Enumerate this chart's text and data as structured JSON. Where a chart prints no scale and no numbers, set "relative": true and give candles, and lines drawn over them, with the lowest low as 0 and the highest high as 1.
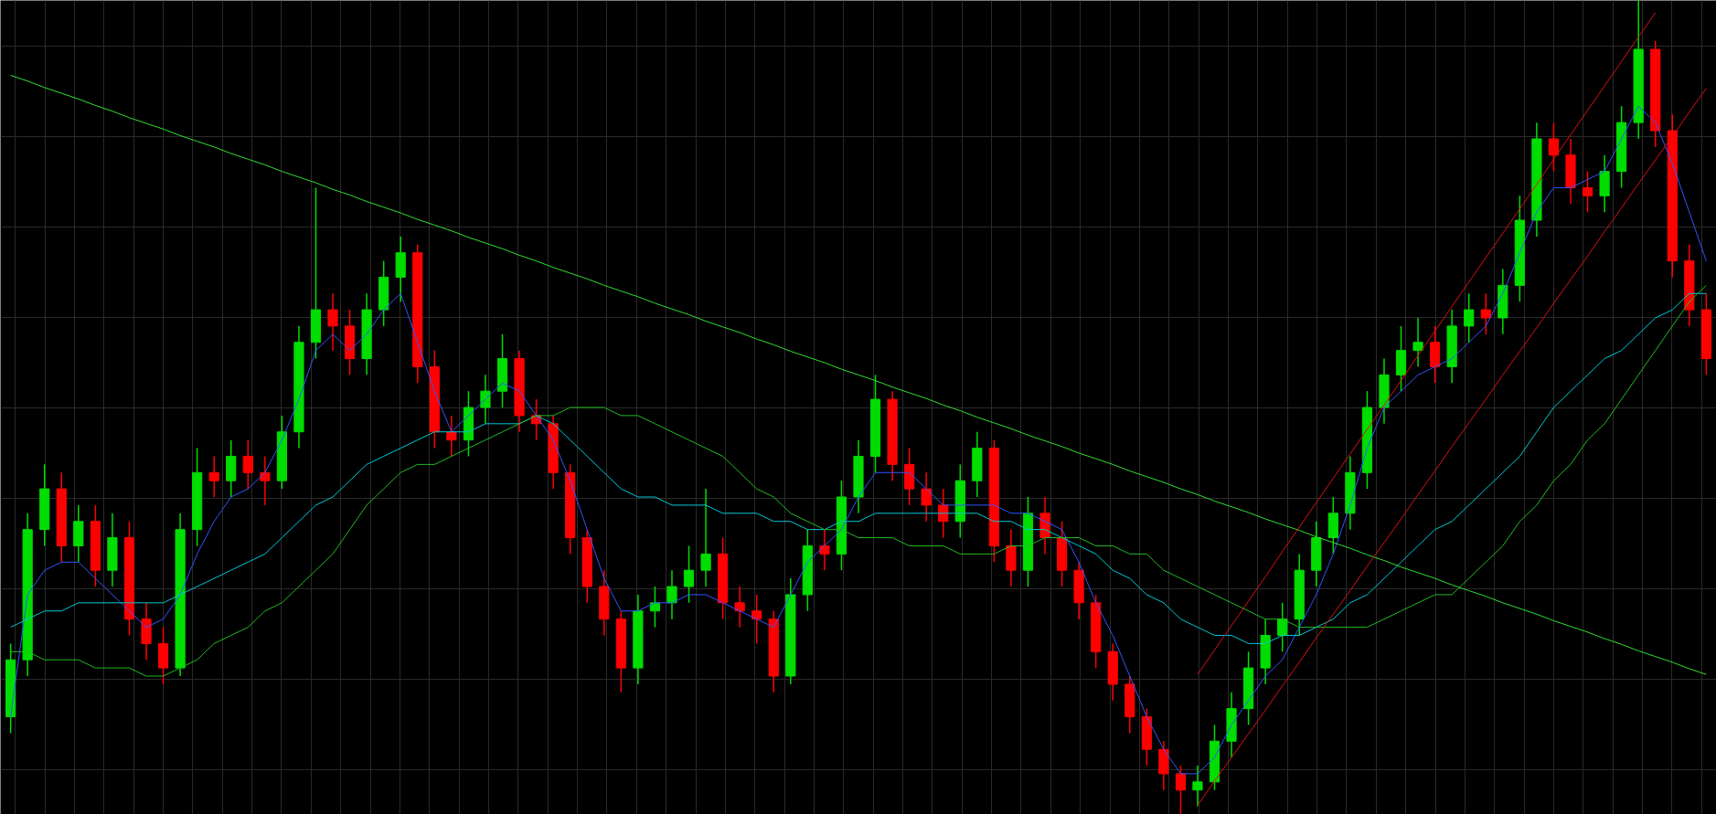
{
  "chart_data": {
    "type": "candlestick",
    "relative": true,
    "tick_labels": false,
    "grid": true,
    "categories": [
      null,
      null,
      null,
      null,
      null,
      null,
      null,
      null,
      null,
      null,
      null,
      null,
      null,
      null,
      null,
      null,
      null,
      null,
      null,
      null,
      null,
      null,
      null,
      null,
      null,
      null,
      null,
      null,
      null,
      null,
      null,
      null,
      null,
      null,
      null,
      null,
      null,
      null,
      null,
      null,
      null,
      null,
      null,
      null,
      null,
      null,
      null,
      null,
      null,
      null,
      null,
      null,
      null,
      null,
      null,
      null,
      null,
      null,
      null,
      null,
      null,
      null,
      null,
      null,
      null,
      null,
      null,
      null,
      null,
      null,
      null,
      null,
      null,
      null,
      null,
      null,
      null,
      null,
      null,
      null,
      null,
      null,
      null,
      null,
      null,
      null,
      null,
      null,
      null,
      null,
      null,
      null,
      null,
      null,
      null,
      null,
      null,
      null,
      null,
      null,
      null
    ],
    "ohlc": [
      [
        0.12,
        0.21,
        0.1,
        0.19
      ],
      [
        0.19,
        0.37,
        0.17,
        0.35
      ],
      [
        0.35,
        0.43,
        0.33,
        0.4
      ],
      [
        0.4,
        0.42,
        0.31,
        0.33
      ],
      [
        0.33,
        0.38,
        0.31,
        0.36
      ],
      [
        0.36,
        0.38,
        0.28,
        0.3
      ],
      [
        0.3,
        0.37,
        0.28,
        0.34
      ],
      [
        0.34,
        0.36,
        0.22,
        0.24
      ],
      [
        0.24,
        0.26,
        0.19,
        0.21
      ],
      [
        0.21,
        0.23,
        0.16,
        0.18
      ],
      [
        0.18,
        0.37,
        0.17,
        0.35
      ],
      [
        0.35,
        0.45,
        0.33,
        0.42
      ],
      [
        0.42,
        0.44,
        0.39,
        0.41
      ],
      [
        0.41,
        0.46,
        0.39,
        0.44
      ],
      [
        0.44,
        0.46,
        0.4,
        0.42
      ],
      [
        0.42,
        0.44,
        0.38,
        0.41
      ],
      [
        0.41,
        0.49,
        0.4,
        0.47
      ],
      [
        0.47,
        0.6,
        0.45,
        0.58
      ],
      [
        0.58,
        0.77,
        0.56,
        0.62
      ],
      [
        0.62,
        0.64,
        0.57,
        0.6
      ],
      [
        0.6,
        0.62,
        0.54,
        0.56
      ],
      [
        0.56,
        0.64,
        0.54,
        0.62
      ],
      [
        0.62,
        0.68,
        0.6,
        0.66
      ],
      [
        0.66,
        0.71,
        0.63,
        0.69
      ],
      [
        0.69,
        0.7,
        0.53,
        0.55
      ],
      [
        0.55,
        0.57,
        0.45,
        0.47
      ],
      [
        0.47,
        0.49,
        0.44,
        0.46
      ],
      [
        0.46,
        0.52,
        0.44,
        0.5
      ],
      [
        0.5,
        0.54,
        0.48,
        0.52
      ],
      [
        0.52,
        0.59,
        0.5,
        0.56
      ],
      [
        0.56,
        0.57,
        0.47,
        0.49
      ],
      [
        0.49,
        0.51,
        0.46,
        0.48
      ],
      [
        0.48,
        0.49,
        0.4,
        0.42
      ],
      [
        0.42,
        0.43,
        0.32,
        0.34
      ],
      [
        0.34,
        0.35,
        0.26,
        0.28
      ],
      [
        0.28,
        0.3,
        0.22,
        0.24
      ],
      [
        0.24,
        0.25,
        0.15,
        0.18
      ],
      [
        0.18,
        0.27,
        0.16,
        0.25
      ],
      [
        0.25,
        0.28,
        0.23,
        0.26
      ],
      [
        0.26,
        0.3,
        0.24,
        0.28
      ],
      [
        0.28,
        0.33,
        0.26,
        0.3
      ],
      [
        0.3,
        0.4,
        0.28,
        0.32
      ],
      [
        0.32,
        0.34,
        0.24,
        0.26
      ],
      [
        0.26,
        0.28,
        0.23,
        0.25
      ],
      [
        0.25,
        0.27,
        0.21,
        0.24
      ],
      [
        0.24,
        0.25,
        0.15,
        0.17
      ],
      [
        0.17,
        0.29,
        0.16,
        0.27
      ],
      [
        0.27,
        0.35,
        0.25,
        0.33
      ],
      [
        0.33,
        0.35,
        0.3,
        0.32
      ],
      [
        0.32,
        0.41,
        0.3,
        0.39
      ],
      [
        0.39,
        0.46,
        0.37,
        0.44
      ],
      [
        0.44,
        0.54,
        0.42,
        0.51
      ],
      [
        0.51,
        0.52,
        0.41,
        0.43
      ],
      [
        0.43,
        0.45,
        0.38,
        0.4
      ],
      [
        0.4,
        0.42,
        0.36,
        0.38
      ],
      [
        0.38,
        0.4,
        0.34,
        0.36
      ],
      [
        0.36,
        0.43,
        0.34,
        0.41
      ],
      [
        0.41,
        0.47,
        0.39,
        0.45
      ],
      [
        0.45,
        0.46,
        0.31,
        0.33
      ],
      [
        0.33,
        0.35,
        0.28,
        0.3
      ],
      [
        0.3,
        0.39,
        0.28,
        0.37
      ],
      [
        0.37,
        0.39,
        0.32,
        0.34
      ],
      [
        0.34,
        0.36,
        0.28,
        0.3
      ],
      [
        0.3,
        0.31,
        0.24,
        0.26
      ],
      [
        0.26,
        0.27,
        0.18,
        0.2
      ],
      [
        0.2,
        0.21,
        0.14,
        0.16
      ],
      [
        0.16,
        0.17,
        0.1,
        0.12
      ],
      [
        0.12,
        0.13,
        0.06,
        0.08
      ],
      [
        0.08,
        0.09,
        0.03,
        0.05
      ],
      [
        0.05,
        0.06,
        0.0,
        0.03
      ],
      [
        0.03,
        0.06,
        0.01,
        0.04
      ],
      [
        0.04,
        0.11,
        0.03,
        0.09
      ],
      [
        0.09,
        0.15,
        0.07,
        0.13
      ],
      [
        0.13,
        0.2,
        0.11,
        0.18
      ],
      [
        0.18,
        0.24,
        0.16,
        0.22
      ],
      [
        0.22,
        0.26,
        0.2,
        0.24
      ],
      [
        0.24,
        0.32,
        0.22,
        0.3
      ],
      [
        0.3,
        0.36,
        0.28,
        0.34
      ],
      [
        0.34,
        0.39,
        0.32,
        0.37
      ],
      [
        0.37,
        0.44,
        0.35,
        0.42
      ],
      [
        0.42,
        0.52,
        0.4,
        0.5
      ],
      [
        0.5,
        0.56,
        0.48,
        0.54
      ],
      [
        0.54,
        0.6,
        0.52,
        0.57
      ],
      [
        0.57,
        0.61,
        0.55,
        0.58
      ],
      [
        0.58,
        0.6,
        0.53,
        0.55
      ],
      [
        0.55,
        0.62,
        0.53,
        0.6
      ],
      [
        0.6,
        0.64,
        0.58,
        0.62
      ],
      [
        0.62,
        0.64,
        0.59,
        0.61
      ],
      [
        0.61,
        0.67,
        0.59,
        0.65
      ],
      [
        0.65,
        0.76,
        0.63,
        0.73
      ],
      [
        0.73,
        0.85,
        0.71,
        0.83
      ],
      [
        0.83,
        0.85,
        0.79,
        0.81
      ],
      [
        0.81,
        0.83,
        0.75,
        0.77
      ],
      [
        0.77,
        0.79,
        0.74,
        0.76
      ],
      [
        0.76,
        0.81,
        0.74,
        0.79
      ],
      [
        0.79,
        0.87,
        0.77,
        0.85
      ],
      [
        0.85,
        1.0,
        0.83,
        0.94
      ],
      [
        0.94,
        0.95,
        0.82,
        0.84
      ],
      [
        0.84,
        0.86,
        0.66,
        0.68
      ],
      [
        0.68,
        0.7,
        0.6,
        0.62
      ],
      [
        0.62,
        0.64,
        0.54,
        0.56
      ]
    ],
    "colors": [
      "#00dd00",
      "#00dd00",
      "#00dd00",
      "#ff0000",
      "#00dd00",
      "#ff0000",
      "#00dd00",
      "#ff0000",
      "#ff0000",
      "#ff0000",
      "#00dd00",
      "#00dd00",
      "#ff0000",
      "#00dd00",
      "#ff0000",
      "#ff0000",
      "#00dd00",
      "#00dd00",
      "#00dd00",
      "#ff0000",
      "#ff0000",
      "#00dd00",
      "#00dd00",
      "#00dd00",
      "#ff0000",
      "#ff0000",
      "#ff0000",
      "#00dd00",
      "#00dd00",
      "#00dd00",
      "#ff0000",
      "#ff0000",
      "#ff0000",
      "#ff0000",
      "#ff0000",
      "#ff0000",
      "#ff0000",
      "#00dd00",
      "#00dd00",
      "#00dd00",
      "#00dd00",
      "#00dd00",
      "#ff0000",
      "#ff0000",
      "#ff0000",
      "#ff0000",
      "#00dd00",
      "#00dd00",
      "#ff0000",
      "#00dd00",
      "#00dd00",
      "#00dd00",
      "#ff0000",
      "#ff0000",
      "#ff0000",
      "#ff0000",
      "#00dd00",
      "#00dd00",
      "#ff0000",
      "#ff0000",
      "#00dd00",
      "#ff0000",
      "#ff0000",
      "#ff0000",
      "#ff0000",
      "#ff0000",
      "#ff0000",
      "#ff0000",
      "#ff0000",
      "#ff0000",
      "#00dd00",
      "#00dd00",
      "#00dd00",
      "#00dd00",
      "#00dd00",
      "#00dd00",
      "#00dd00",
      "#00dd00",
      "#00dd00",
      "#00dd00",
      "#00dd00",
      "#00dd00",
      "#00dd00",
      "#00dd00",
      "#ff0000",
      "#00dd00",
      "#00dd00",
      "#ff0000",
      "#00dd00",
      "#00dd00",
      "#00dd00",
      "#ff0000",
      "#ff0000",
      "#ff0000",
      "#00dd00",
      "#00dd00",
      "#00dd00",
      "#ff0000",
      "#ff0000",
      "#ff0000",
      "#ff0000"
    ],
    "series": [
      {
        "type": "line",
        "color": "#3355ff",
        "values": [
          0.12,
          0.27,
          0.3,
          0.31,
          0.31,
          0.29,
          0.27,
          0.25,
          0.23,
          0.24,
          0.27,
          0.32,
          0.36,
          0.39,
          0.4,
          0.42,
          0.46,
          0.51,
          0.57,
          0.59,
          0.57,
          0.59,
          0.62,
          0.64,
          0.58,
          0.52,
          0.47,
          0.49,
          0.51,
          0.53,
          0.52,
          0.49,
          0.46,
          0.41,
          0.35,
          0.29,
          0.25,
          0.25,
          0.26,
          0.26,
          0.27,
          0.27,
          0.26,
          0.25,
          0.24,
          0.23,
          0.27,
          0.31,
          0.33,
          0.35,
          0.39,
          0.42,
          0.42,
          0.42,
          0.4,
          0.38,
          0.38,
          0.38,
          0.38,
          0.37,
          0.37,
          0.36,
          0.35,
          0.31,
          0.26,
          0.22,
          0.17,
          0.12,
          0.08,
          0.05,
          0.05,
          0.07,
          0.11,
          0.14,
          0.17,
          0.19,
          0.23,
          0.27,
          0.32,
          0.38,
          0.45,
          0.5,
          0.52,
          0.54,
          0.55,
          0.56,
          0.58,
          0.6,
          0.64,
          0.69,
          0.74,
          0.77,
          0.77,
          0.78,
          0.79,
          0.83,
          0.87,
          0.85,
          0.8,
          0.74,
          0.68
        ]
      },
      {
        "type": "line",
        "color": "#00c8d8",
        "values": [
          0.23,
          0.24,
          0.25,
          0.25,
          0.26,
          0.26,
          0.26,
          0.26,
          0.26,
          0.26,
          0.27,
          0.28,
          0.29,
          0.3,
          0.31,
          0.32,
          0.34,
          0.36,
          0.38,
          0.39,
          0.41,
          0.43,
          0.44,
          0.45,
          0.46,
          0.47,
          0.47,
          0.47,
          0.48,
          0.48,
          0.48,
          0.49,
          0.48,
          0.46,
          0.44,
          0.42,
          0.4,
          0.39,
          0.39,
          0.38,
          0.38,
          0.38,
          0.37,
          0.37,
          0.37,
          0.36,
          0.36,
          0.35,
          0.35,
          0.36,
          0.36,
          0.37,
          0.37,
          0.37,
          0.37,
          0.37,
          0.37,
          0.37,
          0.36,
          0.36,
          0.35,
          0.35,
          0.34,
          0.33,
          0.32,
          0.3,
          0.29,
          0.27,
          0.26,
          0.24,
          0.23,
          0.22,
          0.22,
          0.21,
          0.21,
          0.22,
          0.22,
          0.23,
          0.24,
          0.26,
          0.27,
          0.29,
          0.31,
          0.33,
          0.35,
          0.36,
          0.38,
          0.4,
          0.42,
          0.44,
          0.47,
          0.5,
          0.52,
          0.54,
          0.56,
          0.57,
          0.59,
          0.61,
          0.62,
          0.64,
          0.64
        ]
      },
      {
        "type": "line",
        "color": "#22bb22",
        "values": [
          0.2,
          0.2,
          0.19,
          0.19,
          0.19,
          0.18,
          0.18,
          0.18,
          0.17,
          0.17,
          0.18,
          0.19,
          0.21,
          0.22,
          0.23,
          0.25,
          0.26,
          0.28,
          0.3,
          0.32,
          0.35,
          0.38,
          0.4,
          0.42,
          0.43,
          0.43,
          0.44,
          0.45,
          0.46,
          0.47,
          0.48,
          0.49,
          0.49,
          0.5,
          0.5,
          0.5,
          0.49,
          0.49,
          0.48,
          0.47,
          0.46,
          0.45,
          0.44,
          0.42,
          0.4,
          0.39,
          0.37,
          0.36,
          0.35,
          0.35,
          0.34,
          0.34,
          0.34,
          0.33,
          0.33,
          0.33,
          0.32,
          0.32,
          0.32,
          0.33,
          0.33,
          0.34,
          0.34,
          0.34,
          0.33,
          0.33,
          0.32,
          0.32,
          0.3,
          0.29,
          0.28,
          0.27,
          0.26,
          0.25,
          0.24,
          0.24,
          0.23,
          0.23,
          0.23,
          0.23,
          0.23,
          0.24,
          0.25,
          0.26,
          0.27,
          0.27,
          0.29,
          0.31,
          0.33,
          0.36,
          0.38,
          0.41,
          0.43,
          0.46,
          0.48,
          0.51,
          0.54,
          0.57,
          0.6,
          0.63,
          0.65
        ]
      },
      {
        "type": "line",
        "color": "#33dd33",
        "values": [
          0.908,
          0.901,
          0.893,
          0.886,
          0.879,
          0.871,
          0.864,
          0.856,
          0.849,
          0.842,
          0.834,
          0.827,
          0.82,
          0.812,
          0.805,
          0.798,
          0.79,
          0.783,
          0.776,
          0.768,
          0.761,
          0.753,
          0.746,
          0.739,
          0.731,
          0.724,
          0.717,
          0.709,
          0.702,
          0.695,
          0.687,
          0.68,
          0.672,
          0.665,
          0.658,
          0.65,
          0.643,
          0.636,
          0.628,
          0.621,
          0.614,
          0.606,
          0.599,
          0.592,
          0.584,
          0.577,
          0.569,
          0.562,
          0.555,
          0.547,
          0.54,
          0.533,
          0.525,
          0.518,
          0.511,
          0.503,
          0.496,
          0.488,
          0.481,
          0.474,
          0.466,
          0.459,
          0.452,
          0.444,
          0.437,
          0.43,
          0.422,
          0.415,
          0.408,
          0.4,
          0.393,
          0.385,
          0.378,
          0.371,
          0.363,
          0.356,
          0.349,
          0.341,
          0.334,
          0.327,
          0.319,
          0.312,
          0.304,
          0.297,
          0.29,
          0.282,
          0.275,
          0.268,
          0.26,
          0.253,
          0.246,
          0.238,
          0.231,
          0.224,
          0.216,
          0.209,
          0.201,
          0.194,
          0.187,
          0.179,
          0.172
        ]
      },
      {
        "type": "line",
        "color": "#dd1111",
        "values": [
          null,
          null,
          null,
          null,
          null,
          null,
          null,
          null,
          null,
          null,
          null,
          null,
          null,
          null,
          null,
          null,
          null,
          null,
          null,
          null,
          null,
          null,
          null,
          null,
          null,
          null,
          null,
          null,
          null,
          null,
          null,
          null,
          null,
          null,
          null,
          null,
          null,
          null,
          null,
          null,
          null,
          null,
          null,
          null,
          null,
          null,
          null,
          null,
          null,
          null,
          null,
          null,
          null,
          null,
          null,
          null,
          null,
          null,
          null,
          null,
          null,
          null,
          null,
          null,
          null,
          null,
          null,
          null,
          null,
          null,
          0.011,
          0.041,
          0.07,
          0.099,
          0.128,
          0.158,
          0.187,
          0.217,
          0.246,
          0.275,
          0.305,
          0.334,
          0.363,
          0.393,
          0.422,
          0.452,
          0.481,
          0.51,
          0.54,
          0.569,
          0.598,
          0.628,
          0.657,
          0.686,
          0.716,
          0.745,
          0.775,
          0.804,
          0.833,
          0.863,
          0.892
        ]
      },
      {
        "type": "line",
        "color": "#dd1111",
        "values": [
          null,
          null,
          null,
          null,
          null,
          null,
          null,
          null,
          null,
          null,
          null,
          null,
          null,
          null,
          null,
          null,
          null,
          null,
          null,
          null,
          null,
          null,
          null,
          null,
          null,
          null,
          null,
          null,
          null,
          null,
          null,
          null,
          null,
          null,
          null,
          null,
          null,
          null,
          null,
          null,
          null,
          null,
          null,
          null,
          null,
          null,
          null,
          null,
          null,
          null,
          null,
          null,
          null,
          null,
          null,
          null,
          null,
          null,
          null,
          null,
          null,
          null,
          null,
          null,
          null,
          null,
          null,
          null,
          null,
          null,
          0.172,
          0.202,
          0.232,
          0.262,
          0.292,
          0.323,
          0.353,
          0.383,
          0.413,
          0.443,
          0.473,
          0.503,
          0.533,
          0.564,
          0.594,
          0.624,
          0.654,
          0.684,
          0.714,
          0.744,
          0.774,
          0.805,
          0.835,
          0.865,
          0.895,
          0.925,
          0.955,
          0.985,
          null,
          null,
          null
        ]
      }
    ]
  }
}
